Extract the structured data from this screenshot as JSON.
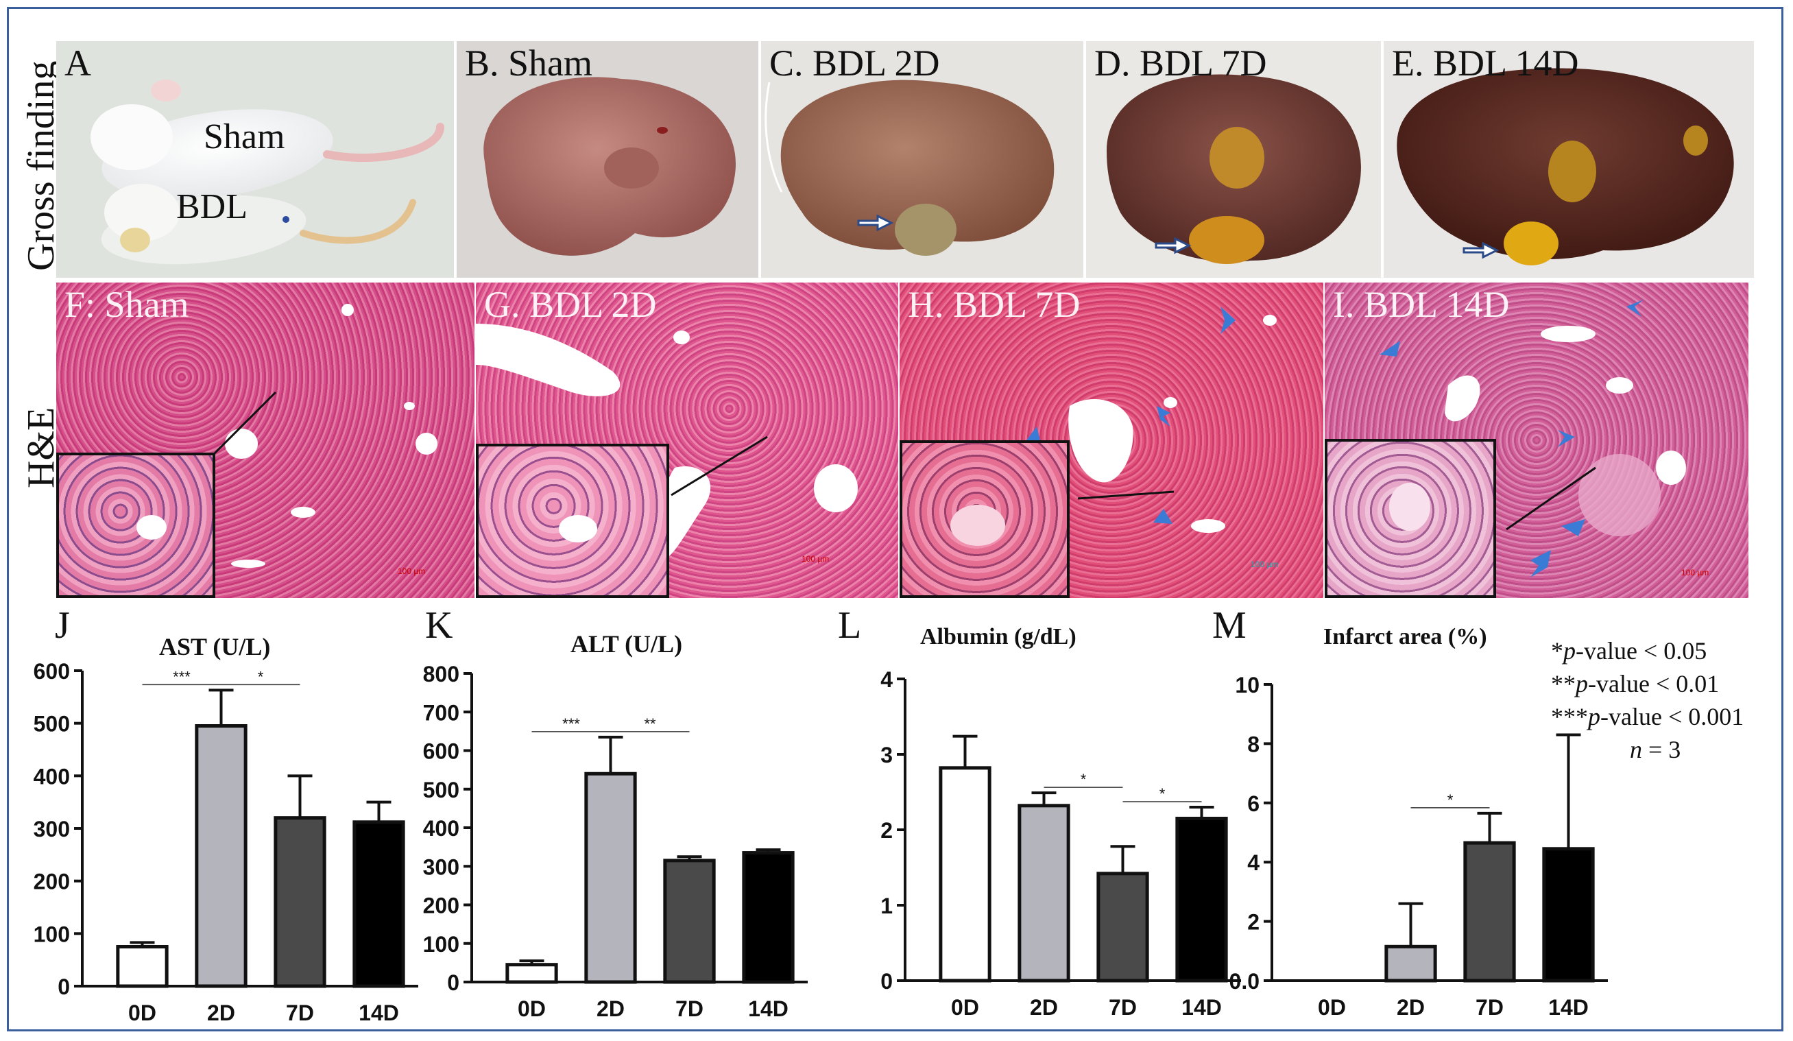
{
  "rows": {
    "gross_label": "Gross finding",
    "he_label": "H&E"
  },
  "gross_panels": [
    {
      "letter_label": "A",
      "sham_text": "Sham",
      "bdl_text": "BDL"
    },
    {
      "label": "B. Sham"
    },
    {
      "label": "C. BDL 2D"
    },
    {
      "label": "D. BDL 7D"
    },
    {
      "label": "E. BDL 14D"
    }
  ],
  "he_panels": [
    {
      "label": "F: Sham",
      "scale": "100 µm"
    },
    {
      "label": "G. BDL 2D",
      "scale": "100 µm"
    },
    {
      "label": "H. BDL 7D",
      "scale": "100 µm"
    },
    {
      "label": "I. BDL 14D",
      "scale": "100 µm"
    }
  ],
  "legend": {
    "l1_prefix": "*",
    "l1_p": "p",
    "l1_suffix": "-value < 0.05",
    "l2_prefix": "**",
    "l2_p": "p",
    "l2_suffix": "-value < 0.01",
    "l3_prefix": "***",
    "l3_p": "p",
    "l3_suffix": "-value < 0.001",
    "n_italic": "n",
    "n_suffix": " = 3"
  },
  "colors": {
    "bar_0D": "#ffffff",
    "bar_2D": "#b4b4bd",
    "bar_7D": "#4a4a4a",
    "bar_14D": "#000000",
    "frame": "#3b5e9e",
    "he_pink": "#e0508a",
    "arrowhead": "#3a7bd5"
  },
  "chart_data": [
    {
      "letter": "J",
      "type": "bar",
      "title": "AST (U/L)",
      "categories": [
        "0D",
        "2D",
        "7D",
        "14D"
      ],
      "values": [
        75,
        495,
        320,
        312
      ],
      "errors": [
        8,
        68,
        80,
        38
      ],
      "ylim": [
        0,
        600
      ],
      "yticks": [
        0,
        100,
        200,
        300,
        400,
        500,
        600
      ],
      "significance": [
        {
          "from": 0,
          "to": 1,
          "label": "***"
        },
        {
          "from": 1,
          "to": 2,
          "label": "*"
        }
      ]
    },
    {
      "letter": "K",
      "type": "bar",
      "title": "ALT (U/L)",
      "categories": [
        "0D",
        "2D",
        "7D",
        "14D"
      ],
      "values": [
        45,
        540,
        315,
        335
      ],
      "errors": [
        10,
        95,
        10,
        8
      ],
      "ylim": [
        0,
        800
      ],
      "yticks": [
        0,
        100,
        200,
        300,
        400,
        500,
        600,
        700,
        800
      ],
      "significance": [
        {
          "from": 0,
          "to": 1,
          "label": "***"
        },
        {
          "from": 1,
          "to": 2,
          "label": "**"
        }
      ]
    },
    {
      "letter": "L",
      "type": "bar",
      "title": "Albumin (g/dL)",
      "categories": [
        "0D",
        "2D",
        "7D",
        "14D"
      ],
      "values": [
        2.82,
        2.32,
        1.42,
        2.15
      ],
      "errors": [
        0.42,
        0.17,
        0.36,
        0.15
      ],
      "ylim": [
        0,
        4
      ],
      "yticks": [
        0,
        1,
        2,
        3,
        4
      ],
      "significance": [
        {
          "from": 1,
          "to": 2,
          "label": "*"
        },
        {
          "from": 2,
          "to": 3,
          "label": "*"
        }
      ]
    },
    {
      "letter": "M",
      "type": "bar",
      "title": "Infarct area (%)",
      "categories": [
        "0D",
        "2D",
        "7D",
        "14D"
      ],
      "values": [
        0,
        1.15,
        4.65,
        4.45
      ],
      "errors": [
        0,
        1.45,
        1.0,
        3.85
      ],
      "ylim": [
        0,
        10
      ],
      "yticks": [
        0,
        2,
        4,
        6,
        8,
        10
      ],
      "zero_label": "0.0",
      "significance": [
        {
          "from": 1,
          "to": 2,
          "label": "*"
        }
      ]
    }
  ]
}
